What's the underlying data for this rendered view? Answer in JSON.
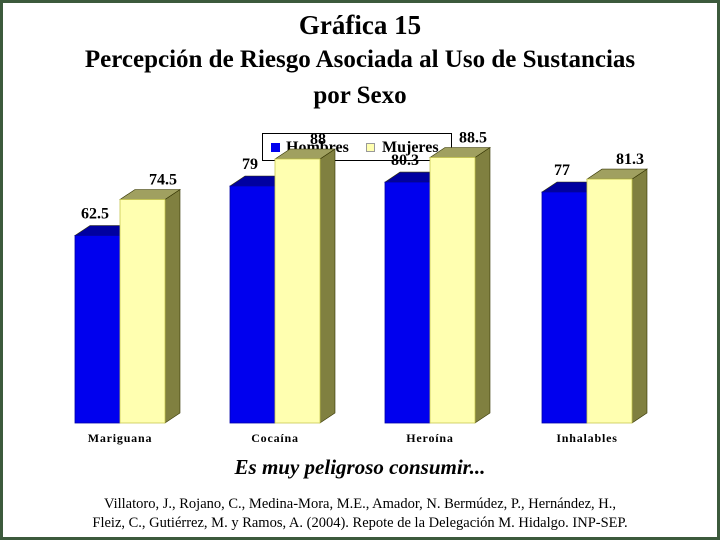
{
  "titles": {
    "line1": "Gráfica 15",
    "line2": "Percepción de Riesgo Asociada al Uso de Sustancias",
    "line3": "por Sexo"
  },
  "legend": [
    {
      "name": "Hombres",
      "color": "#0000ee"
    },
    {
      "name": "Mujeres",
      "color": "#ffffb0"
    }
  ],
  "subtitle": "Es muy peligroso consumir...",
  "citation": {
    "line1": "Villatoro, J., Rojano, C., Medina-Mora, M.E., Amador, N. Bermúdez, P., Hernández, H.,",
    "line2": "Fleiz, C., Gutiérrez, M. y Ramos, A. (2004). Repote de la Delegación M. Hidalgo. INP-SEP."
  },
  "chart_data": {
    "type": "bar",
    "style": "3d",
    "categories": [
      "Mariguana",
      "Cocaína",
      "Heroína",
      "Inhalables"
    ],
    "series": [
      {
        "name": "Hombres",
        "values": [
          62.5,
          79,
          80.3,
          77
        ],
        "labels": [
          "62.5",
          "79",
          "80.3",
          "77"
        ],
        "color": "#0000ee"
      },
      {
        "name": "Mujeres",
        "values": [
          74.5,
          88,
          88.5,
          81.3
        ],
        "labels": [
          "74.5",
          "88",
          "88.5",
          "81.3"
        ],
        "color": "#ffffb0"
      }
    ],
    "ylim": [
      0,
      100
    ],
    "grid": false,
    "legend_position": "top-center"
  }
}
